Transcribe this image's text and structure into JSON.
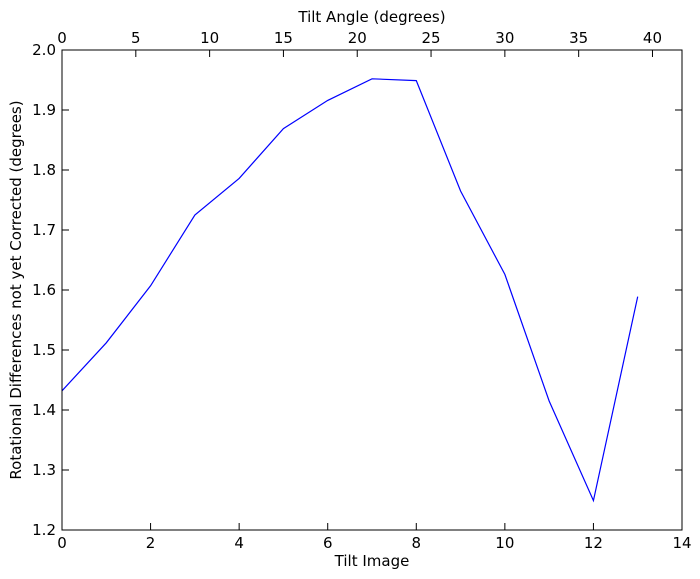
{
  "chart_data": {
    "type": "line",
    "x": [
      0,
      1,
      2,
      3,
      4,
      5,
      6,
      7,
      8,
      9,
      10,
      11,
      12,
      13
    ],
    "series": [
      {
        "values": [
          1.432,
          1.512,
          1.607,
          1.725,
          1.786,
          1.869,
          1.916,
          1.952,
          1.949,
          1.765,
          1.626,
          1.415,
          1.249,
          1.589
        ],
        "color": "#0000ff"
      }
    ],
    "xlabel": "Tilt Image",
    "ylabel": "Rotational Differences not yet Corrected (degrees)",
    "secondary_xlabel": "Tilt Angle (degrees)",
    "xlim": [
      0,
      14
    ],
    "ylim": [
      1.2,
      2.0
    ],
    "secondary_xlim": [
      0,
      42
    ],
    "x_ticks": [
      "0",
      "2",
      "4",
      "6",
      "8",
      "10",
      "12",
      "14"
    ],
    "y_ticks": [
      "1.2",
      "1.3",
      "1.4",
      "1.5",
      "1.6",
      "1.7",
      "1.8",
      "1.9",
      "2.0"
    ],
    "secondary_x_ticks": [
      "0",
      "5",
      "10",
      "15",
      "20",
      "25",
      "30",
      "35",
      "40"
    ],
    "grid": false,
    "legend": "none"
  }
}
